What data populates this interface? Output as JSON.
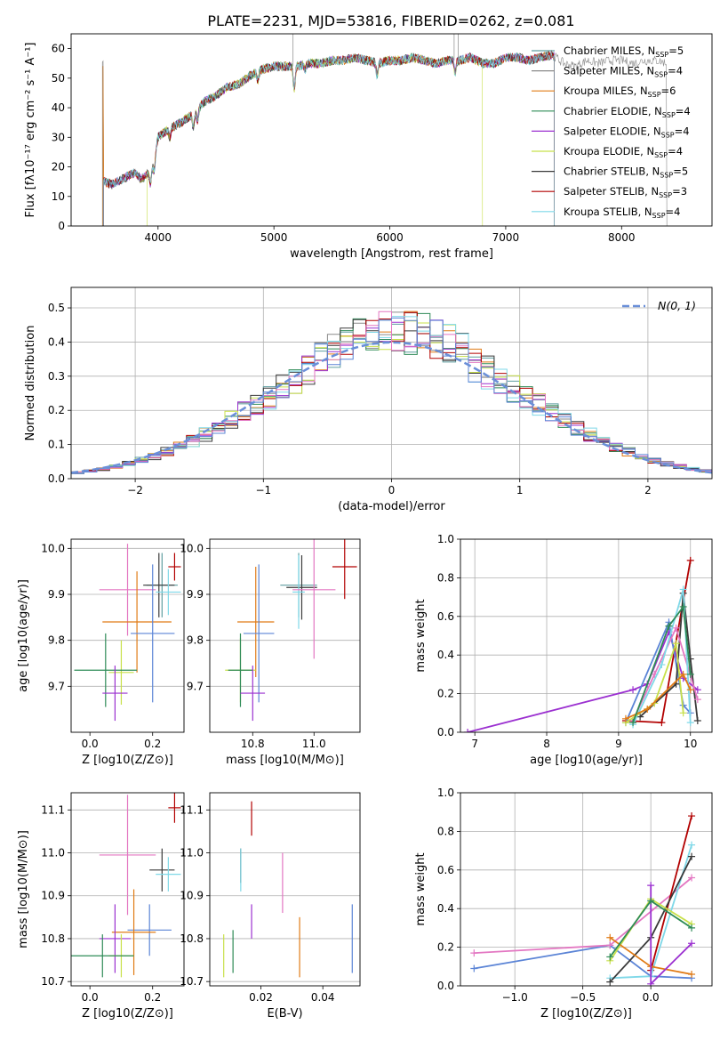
{
  "figure_title": "PLATE=2231, MJD=53816, FIBERID=0262, z=0.081",
  "colors": {
    "chabrier_miles": "#5f9ea0",
    "salpeter_miles": "#8a8a8a",
    "kroupa_miles": "#e07b16",
    "chabrier_elodie": "#2e8b57",
    "salpeter_elodie": "#9b30d0",
    "kroupa_elodie": "#c8e04a",
    "chabrier_stelib": "#3a3a3a",
    "salpeter_stelib": "#b20000",
    "kroupa_stelib": "#7fd8e8",
    "pink": "#e377c2",
    "blue": "#5b84d6",
    "dashed": "#6a8fd8"
  },
  "chart_data": [
    {
      "id": "spectrum",
      "type": "line",
      "xlabel": "wavelength [Angstrom, rest frame]",
      "ylabel": "Flux [fλ10⁻¹⁷ erg cm⁻² s⁻¹ A⁻¹]",
      "xlim": [
        3250,
        8780
      ],
      "ylim": [
        0,
        65
      ],
      "xticks": [
        "4000",
        "5000",
        "6000",
        "7000",
        "8000"
      ],
      "yticks": [
        "0",
        "10",
        "20",
        "30",
        "40",
        "50",
        "60"
      ],
      "legend_position": "top-right",
      "series": [
        {
          "name": "Chabrier MILES, N_SSP=5"
        },
        {
          "name": "Salpeter MILES, N_SSP=4"
        },
        {
          "name": "Kroupa MILES, N_SSP=6"
        },
        {
          "name": "Chabrier ELODIE, N_SSP=4"
        },
        {
          "name": "Salpeter ELODIE, N_SSP=4"
        },
        {
          "name": "Kroupa ELODIE, N_SSP=4"
        },
        {
          "name": "Chabrier STELIB, N_SSP=5"
        },
        {
          "name": "Salpeter STELIB, N_SSP=3"
        },
        {
          "name": "Kroupa STELIB, N_SSP=4"
        }
      ],
      "continuum": [
        [
          3530,
          15
        ],
        [
          3600,
          14
        ],
        [
          3700,
          16
        ],
        [
          3800,
          18
        ],
        [
          3850,
          16
        ],
        [
          3900,
          17
        ],
        [
          3950,
          20
        ],
        [
          4000,
          30
        ],
        [
          4100,
          33
        ],
        [
          4200,
          35
        ],
        [
          4300,
          38
        ],
        [
          4400,
          42
        ],
        [
          4500,
          44
        ],
        [
          4600,
          47
        ],
        [
          4700,
          48
        ],
        [
          4800,
          51
        ],
        [
          4900,
          53
        ],
        [
          5000,
          54
        ],
        [
          5100,
          54
        ],
        [
          5200,
          54
        ],
        [
          5300,
          55
        ],
        [
          5400,
          55
        ],
        [
          5500,
          56
        ],
        [
          5600,
          56
        ],
        [
          5700,
          57
        ],
        [
          5800,
          56
        ],
        [
          5900,
          55
        ],
        [
          6000,
          56
        ],
        [
          6100,
          56
        ],
        [
          6200,
          57
        ],
        [
          6300,
          56
        ],
        [
          6400,
          55
        ],
        [
          6500,
          56
        ],
        [
          6600,
          56
        ],
        [
          6700,
          57
        ],
        [
          6800,
          55
        ],
        [
          6900,
          55
        ],
        [
          7000,
          57
        ],
        [
          7100,
          57
        ],
        [
          7200,
          56
        ],
        [
          7300,
          57
        ],
        [
          7400,
          58
        ],
        [
          7500,
          55
        ],
        [
          7600,
          54
        ],
        [
          7700,
          56
        ],
        [
          7800,
          55
        ],
        [
          7900,
          56
        ],
        [
          8000,
          56
        ],
        [
          8100,
          55
        ],
        [
          8200,
          56
        ],
        [
          8300,
          56
        ],
        [
          8400,
          55
        ]
      ],
      "absorption_lines": [
        [
          3934,
          -5
        ],
        [
          3969,
          -5
        ],
        [
          4102,
          -3
        ],
        [
          4304,
          -5
        ],
        [
          4340,
          -4
        ],
        [
          4861,
          -3
        ],
        [
          5175,
          -8
        ],
        [
          5270,
          -2
        ],
        [
          5890,
          -4
        ],
        [
          6563,
          -4
        ]
      ],
      "noise_amp": 1.6,
      "ends": [
        {
          "series": 0,
          "start": 3530,
          "end": 7420
        },
        {
          "series": 1,
          "start": 3520,
          "end": 8390
        },
        {
          "series": 2,
          "start": 3525,
          "end": 7420
        },
        {
          "series": 3,
          "start": 3530,
          "end": 7420
        },
        {
          "series": 4,
          "start": 3530,
          "end": 7420
        },
        {
          "series": 5,
          "start": 3905,
          "end": 6800
        },
        {
          "series": 6,
          "start": 3530,
          "end": 7420
        },
        {
          "series": 7,
          "start": 3530,
          "end": 7420
        },
        {
          "series": 8,
          "start": 3530,
          "end": 7420
        }
      ],
      "spikes": [
        [
          5165,
          65
        ],
        [
          6555,
          65
        ],
        [
          6590,
          65
        ]
      ]
    },
    {
      "id": "residuals",
      "type": "histogram",
      "xlabel": "(data-model)/error",
      "ylabel": "Normed distribution",
      "xlim": [
        -2.5,
        2.5
      ],
      "ylim": [
        0,
        0.56
      ],
      "xticks": [
        "−2",
        "−1",
        "0",
        "1",
        "2"
      ],
      "yticks": [
        "0.0",
        "0.1",
        "0.2",
        "0.3",
        "0.4",
        "0.5"
      ],
      "legend": "N(0, 1)",
      "legend_position": "top-right",
      "bin_width": 0.1,
      "grid": true
    },
    {
      "id": "age_vs_Z",
      "type": "scatter",
      "xlabel": "Z [log10(Z/Z⊙)]",
      "ylabel": "age  [log10(age/yr)]",
      "xlim": [
        -0.06,
        0.3
      ],
      "ylim": [
        9.6,
        10.02
      ],
      "xticks": [
        "0.0",
        "0.2"
      ],
      "yticks": [
        "9.7",
        "9.8",
        "9.9",
        "10.0"
      ],
      "points": [
        {
          "c": "salpeter_stelib",
          "x": 0.27,
          "y": 9.96,
          "xe": 0.02,
          "ye": 0.03
        },
        {
          "c": "chabrier_miles",
          "x": 0.23,
          "y": 9.92,
          "xe": 0.05,
          "ye": 0.07
        },
        {
          "c": "chabrier_stelib",
          "x": 0.22,
          "y": 9.92,
          "xe": 0.05,
          "ye": 0.07
        },
        {
          "c": "kroupa_stelib",
          "x": 0.25,
          "y": 9.905,
          "xe": 0.04,
          "ye": 0.05
        },
        {
          "c": "pink",
          "x": 0.12,
          "y": 9.91,
          "xe": 0.09,
          "ye": 0.1
        },
        {
          "c": "kroupa_miles",
          "x": 0.15,
          "y": 9.84,
          "xe": 0.11,
          "ye": 0.11
        },
        {
          "c": "blue",
          "x": 0.2,
          "y": 9.815,
          "xe": 0.07,
          "ye": 0.15
        },
        {
          "c": "kroupa_elodie",
          "x": 0.1,
          "y": 9.73,
          "xe": 0.04,
          "ye": 0.07
        },
        {
          "c": "chabrier_elodie",
          "x": 0.05,
          "y": 9.735,
          "xe": 0.1,
          "ye": 0.08
        },
        {
          "c": "salpeter_elodie",
          "x": 0.08,
          "y": 9.685,
          "xe": 0.04,
          "ye": 0.06
        }
      ]
    },
    {
      "id": "age_vs_mass",
      "type": "scatter",
      "xlabel": "mass [log10(M/M⊙)]",
      "ylabel": "",
      "xlim": [
        10.66,
        11.15
      ],
      "ylim": [
        9.6,
        10.02
      ],
      "xticks": [
        "10.8",
        "11.0"
      ],
      "yticks": [
        "9.7",
        "9.8",
        "9.9",
        "10.0"
      ],
      "points": [
        {
          "c": "salpeter_stelib",
          "x": 11.1,
          "y": 9.96,
          "xe": 0.04,
          "ye": 0.07
        },
        {
          "c": "chabrier_miles",
          "x": 10.95,
          "y": 9.92,
          "xe": 0.06,
          "ye": 0.07
        },
        {
          "c": "chabrier_stelib",
          "x": 10.96,
          "y": 9.915,
          "xe": 0.05,
          "ye": 0.07
        },
        {
          "c": "kroupa_stelib",
          "x": 10.95,
          "y": 9.905,
          "xe": 0.02,
          "ye": 0.08
        },
        {
          "c": "pink",
          "x": 11.0,
          "y": 9.91,
          "xe": 0.07,
          "ye": 0.15
        },
        {
          "c": "kroupa_miles",
          "x": 10.81,
          "y": 9.84,
          "xe": 0.06,
          "ye": 0.12
        },
        {
          "c": "blue",
          "x": 10.82,
          "y": 9.815,
          "xe": 0.05,
          "ye": 0.15
        },
        {
          "c": "kroupa_elodie",
          "x": 10.76,
          "y": 9.735,
          "xe": 0.05,
          "ye": 0.07
        },
        {
          "c": "chabrier_elodie",
          "x": 10.76,
          "y": 9.735,
          "xe": 0.04,
          "ye": 0.08
        },
        {
          "c": "salpeter_elodie",
          "x": 10.8,
          "y": 9.685,
          "xe": 0.04,
          "ye": 0.06
        }
      ]
    },
    {
      "id": "mass_weight_vs_age",
      "type": "line",
      "xlabel": "age  [log10(age/yr)]",
      "ylabel": "mass weight",
      "xlim": [
        6.8,
        10.3
      ],
      "ylim": [
        0,
        1
      ],
      "xticks": [
        "7",
        "8",
        "9",
        "10"
      ],
      "yticks": [
        "0.0",
        "0.2",
        "0.4",
        "0.6",
        "0.8",
        "1.0"
      ],
      "series": [
        {
          "c": "salpeter_elodie",
          "x": [
            6.9,
            9.2,
            9.4,
            9.7,
            9.9,
            10.1
          ],
          "y": [
            0.0,
            0.22,
            0.25,
            0.52,
            0.28,
            0.22
          ]
        },
        {
          "c": "salpeter_stelib",
          "x": [
            9.1,
            9.6,
            10.0
          ],
          "y": [
            0.06,
            0.05,
            0.89
          ]
        },
        {
          "c": "blue",
          "x": [
            9.1,
            9.7,
            9.9,
            10.0
          ],
          "y": [
            0.05,
            0.57,
            0.14,
            0.1
          ]
        },
        {
          "c": "chabrier_stelib",
          "x": [
            9.3,
            9.8,
            9.9,
            10.0,
            10.1
          ],
          "y": [
            0.08,
            0.25,
            0.72,
            0.38,
            0.06
          ]
        },
        {
          "c": "pink",
          "x": [
            9.2,
            9.5,
            9.8,
            10.1
          ],
          "y": [
            0.06,
            0.3,
            0.54,
            0.17
          ]
        },
        {
          "c": "kroupa_stelib",
          "x": [
            9.2,
            9.6,
            9.9,
            10.0
          ],
          "y": [
            0.04,
            0.35,
            0.74,
            0.05
          ]
        },
        {
          "c": "kroupa_elodie",
          "x": [
            9.1,
            9.5,
            9.8,
            9.9
          ],
          "y": [
            0.05,
            0.15,
            0.46,
            0.1
          ]
        },
        {
          "c": "kroupa_miles",
          "x": [
            9.1,
            9.4,
            9.9,
            10.0
          ],
          "y": [
            0.07,
            0.12,
            0.3,
            0.22
          ]
        },
        {
          "c": "chabrier_elodie",
          "x": [
            9.2,
            9.7,
            9.9,
            10.0
          ],
          "y": [
            0.05,
            0.55,
            0.65,
            0.3
          ]
        }
      ],
      "grid": true
    },
    {
      "id": "mass_vs_Z",
      "type": "scatter",
      "xlabel": "Z [log10(Z/Z⊙)]",
      "ylabel": "mass [log10(M/M⊙)]",
      "xlim": [
        -0.06,
        0.3
      ],
      "ylim": [
        10.69,
        11.14
      ],
      "xticks": [
        "0.0",
        "0.2"
      ],
      "yticks": [
        "10.7",
        "10.8",
        "10.9",
        "11.0",
        "11.1"
      ],
      "points": [
        {
          "c": "salpeter_stelib",
          "x": 0.27,
          "y": 11.105,
          "xe": 0.02,
          "ye": 0.035
        },
        {
          "c": "pink",
          "x": 0.12,
          "y": 10.995,
          "xe": 0.09,
          "ye": 0.14
        },
        {
          "c": "chabrier_stelib",
          "x": 0.23,
          "y": 10.96,
          "xe": 0.04,
          "ye": 0.05
        },
        {
          "c": "kroupa_stelib",
          "x": 0.25,
          "y": 10.95,
          "xe": 0.04,
          "ye": 0.04
        },
        {
          "c": "blue",
          "x": 0.19,
          "y": 10.82,
          "xe": 0.07,
          "ye": 0.06
        },
        {
          "c": "kroupa_miles",
          "x": 0.14,
          "y": 10.815,
          "xe": 0.07,
          "ye": 0.1
        },
        {
          "c": "salpeter_elodie",
          "x": 0.08,
          "y": 10.8,
          "xe": 0.05,
          "ye": 0.08
        },
        {
          "c": "kroupa_elodie",
          "x": 0.1,
          "y": 10.76,
          "xe": 0.04,
          "ye": 0.05
        },
        {
          "c": "chabrier_elodie",
          "x": 0.04,
          "y": 10.76,
          "xe": 0.1,
          "ye": 0.05
        }
      ]
    },
    {
      "id": "mass_vs_ebv",
      "type": "scatter",
      "xlabel": "E(B-V)",
      "ylabel": "",
      "xlim": [
        0.0035,
        0.052
      ],
      "ylim": [
        10.69,
        11.14
      ],
      "xticks": [
        "0.02",
        "0.04"
      ],
      "yticks": [
        "10.7",
        "10.8",
        "10.9",
        "11.0",
        "11.1"
      ],
      "points": [
        {
          "c": "salpeter_stelib",
          "x": 0.017,
          "y": 11.08,
          "ye": 0.04
        },
        {
          "c": "chabrier_stelib",
          "x": 0.0135,
          "y": 10.97,
          "ye": 0.04
        },
        {
          "c": "kroupa_stelib",
          "x": 0.0135,
          "y": 10.96,
          "ye": 0.05
        },
        {
          "c": "pink",
          "x": 0.027,
          "y": 10.93,
          "ye": 0.07
        },
        {
          "c": "salpeter_elodie",
          "x": 0.017,
          "y": 10.84,
          "ye": 0.04
        },
        {
          "c": "chabrier_elodie",
          "x": 0.011,
          "y": 10.77,
          "ye": 0.05
        },
        {
          "c": "kroupa_elodie",
          "x": 0.008,
          "y": 10.76,
          "ye": 0.05
        },
        {
          "c": "kroupa_miles",
          "x": 0.0325,
          "y": 10.78,
          "ye": 0.07
        },
        {
          "c": "blue",
          "x": 0.0495,
          "y": 10.8,
          "ye": 0.08
        }
      ]
    },
    {
      "id": "mass_weight_vs_Z",
      "type": "line",
      "xlabel": "Z [log10(Z/Z⊙)]",
      "ylabel": "mass weight",
      "xlim": [
        -1.4,
        0.45
      ],
      "ylim": [
        0,
        1
      ],
      "xticks": [
        "−1.0",
        "−0.5",
        "0.0"
      ],
      "yticks": [
        "0.0",
        "0.2",
        "0.4",
        "0.6",
        "0.8",
        "1.0"
      ],
      "series": [
        {
          "c": "blue",
          "x": [
            -1.3,
            -0.3,
            0.0,
            0.3
          ],
          "y": [
            0.09,
            0.21,
            0.05,
            0.04
          ]
        },
        {
          "c": "pink",
          "x": [
            -1.3,
            -0.3,
            0.3
          ],
          "y": [
            0.17,
            0.21,
            0.56
          ]
        },
        {
          "c": "salpeter_stelib",
          "x": [
            0.0,
            0.3
          ],
          "y": [
            0.08,
            0.88
          ]
        },
        {
          "c": "kroupa_stelib",
          "x": [
            -0.3,
            0.0,
            0.3
          ],
          "y": [
            0.04,
            0.05,
            0.73
          ]
        },
        {
          "c": "chabrier_stelib",
          "x": [
            -0.3,
            0.0,
            0.3
          ],
          "y": [
            0.02,
            0.25,
            0.67
          ]
        },
        {
          "c": "kroupa_elodie",
          "x": [
            -0.3,
            0.0,
            0.3
          ],
          "y": [
            0.13,
            0.45,
            0.32
          ]
        },
        {
          "c": "kroupa_miles",
          "x": [
            -0.3,
            0.0,
            0.3
          ],
          "y": [
            0.25,
            0.1,
            0.06
          ]
        },
        {
          "c": "salpeter_elodie",
          "x": [
            0.0,
            0.0,
            0.3
          ],
          "y": [
            0.52,
            0.01,
            0.22
          ]
        },
        {
          "c": "chabrier_elodie",
          "x": [
            -0.3,
            0.0,
            0.3
          ],
          "y": [
            0.15,
            0.44,
            0.3
          ]
        }
      ],
      "grid": true
    }
  ]
}
